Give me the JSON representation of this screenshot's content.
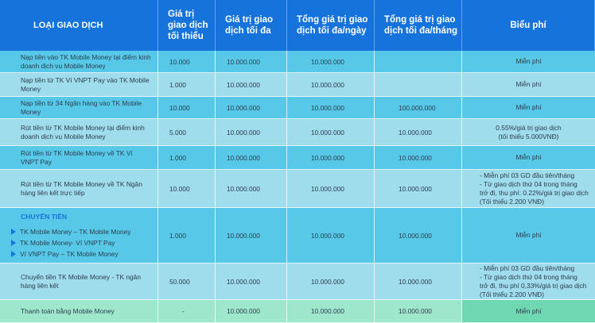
{
  "header": {
    "col1": "LOẠI GIAO DỊCH",
    "col2": "Giá trị giao dịch tối thiểu",
    "col3": "Giá trị giao dịch tối đa",
    "col4": "Tổng giá trị giao dịch tối đa/ngày",
    "col5": "Tổng giá trị giao dịch tối đa/tháng",
    "col6": "Biểu phí"
  },
  "rows": [
    {
      "label": "Nạp tiền vào TK Mobile Money tại điểm kinh doanh dịch vụ Mobile Money",
      "min": "10.000",
      "max": "10.000.000",
      "day": "10.000.000",
      "month": "",
      "fee": "Miễn phí"
    },
    {
      "label": "Nạp tiền từ TK Ví VNPT Pay vào TK Mobile Money",
      "min": "1.000",
      "max": "10.000.000",
      "day": "10.000.000",
      "month": "",
      "fee": "Miễn phí"
    },
    {
      "label": "Nạp tiền từ 34 Ngân hàng vào TK Mobile Money",
      "min": "10.000",
      "max": "10.000.000",
      "day": "10.000.000",
      "month": "100.000.000",
      "fee": "Miễn phí"
    },
    {
      "label": "Rút tiền từ TK Mobile Money tại điểm kinh doanh dịch vụ Mobile Money",
      "min": "5.000",
      "max": "10.000.000",
      "day": "10.000.000",
      "month": "10.000.000",
      "fee_l1": "0.55%/giá trị giao dịch",
      "fee_l2": "(tối thiểu 5.000VNĐ)"
    },
    {
      "label": "Rút tiền từ TK Mobile Money về TK Ví VNPT Pay",
      "min": "1.000",
      "max": "10.000.000",
      "day": "10.000.000",
      "month": "10.000.000",
      "fee": "Miễn phí"
    },
    {
      "label": "Rút tiền từ TK Mobile Money về TK Ngân hàng liên kết trực tiếp",
      "min": "10.000",
      "max": "10.000.000",
      "day": "10.000.000",
      "month": "10.000.000",
      "fee_l1": "- Miễn phí 03 GD đầu tiên/tháng",
      "fee_l2": "- Từ giao dịch thứ 04 trong tháng",
      "fee_l3": "trở đi, thu phí: 0.22%/giá trị giao dịch",
      "fee_l4": "(Tối thiểu 2.200 VNĐ)"
    },
    {
      "title": "CHUYỂN TIỀN",
      "items": [
        "TK Mobile Money – TK Mobile Money",
        "TK Mobile Money- Ví VNPT Pay",
        "Ví VNPT Pay – TK Mobile Money"
      ],
      "min": "1.000",
      "max": "10.000.000",
      "day": "10.000.000",
      "month": "10.000.000",
      "fee": "Miễn phí"
    },
    {
      "label": "Chuyển tiền TK Mobile Money - TK ngân hàng liên kết",
      "min": "50.000",
      "max": "10.000.000",
      "day": "10.000.000",
      "month": "10.000.000",
      "fee_l1": "- Miễn phí 03 GD đầu tiên/tháng",
      "fee_l2": "- Từ giao dịch thứ 04 trong tháng",
      "fee_l3": "trở đi, thu phí 0,33%/giá trị giao dịch",
      "fee_l4": "(Tối thiểu 2.200 VNĐ)"
    },
    {
      "label": "Thanh toán bằng Mobile Money",
      "min": "-",
      "max": "10.000.000",
      "day": "10.000.000",
      "month": "10.000.000",
      "fee": "Miễn phí"
    }
  ],
  "colors": {
    "header": "#1673dc",
    "row_blue": "#57c8e8",
    "row_light": "#9fdcec",
    "row_green": "#9ee7cc"
  }
}
